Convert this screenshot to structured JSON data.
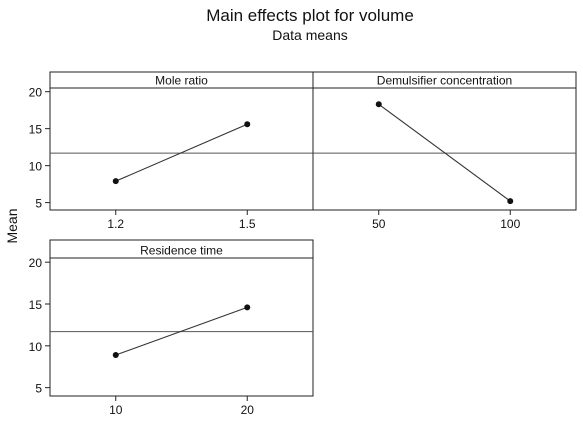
{
  "chart_data": {
    "type": "line",
    "title": "Main effects plot for volume",
    "subtitle": "Data means",
    "ylabel": "Mean",
    "ylim": [
      4,
      20.5
    ],
    "yticks": [
      5,
      10,
      15,
      20
    ],
    "grand_mean": 11.7,
    "colors": {
      "line": "#333333",
      "marker": "#111111",
      "frame": "#222222",
      "reference": "#555555"
    },
    "panels": [
      {
        "factor": "Mole ratio",
        "categories": [
          "1.2",
          "1.5"
        ],
        "values": [
          7.9,
          15.6
        ]
      },
      {
        "factor": "Demulsifier concentration",
        "categories": [
          "50",
          "100"
        ],
        "values": [
          18.3,
          5.2
        ]
      },
      {
        "factor": "Residence time",
        "categories": [
          "10",
          "20"
        ],
        "values": [
          8.9,
          14.6
        ]
      }
    ]
  }
}
